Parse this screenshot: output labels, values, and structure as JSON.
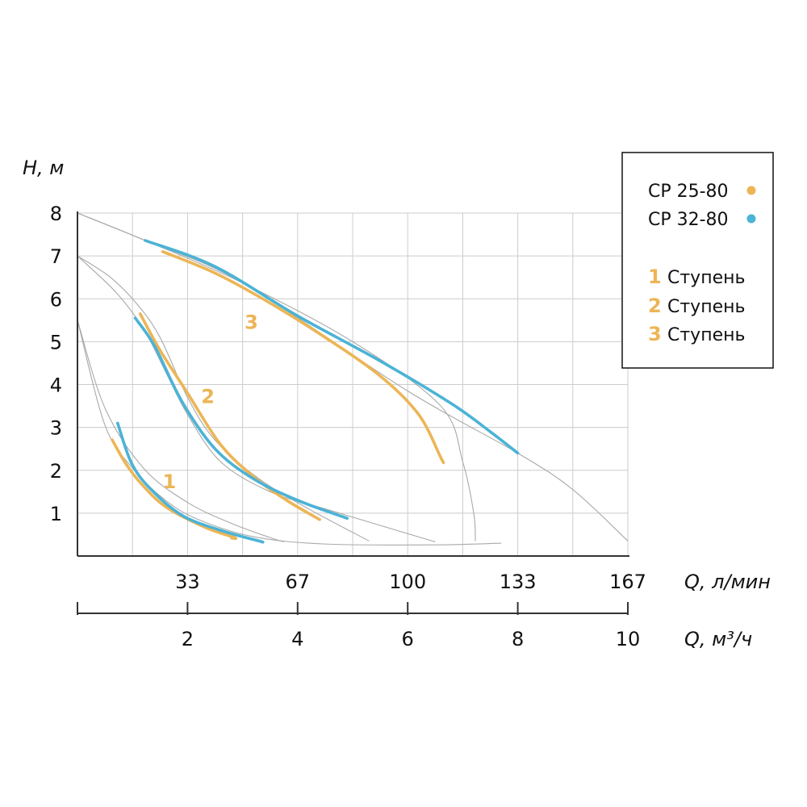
{
  "chart_data": {
    "type": "line",
    "ylabel": "H, м",
    "xlabel": "Q, л/мин",
    "xlabel_secondary": "Q, м³/ч",
    "ylim": [
      0,
      8
    ],
    "xlim": [
      0,
      10
    ],
    "y_ticks": [
      "1",
      "2",
      "3",
      "4",
      "5",
      "6",
      "7",
      "8"
    ],
    "x_ticks_primary": [
      {
        "x": 2,
        "label": "33"
      },
      {
        "x": 4,
        "label": "67"
      },
      {
        "x": 6,
        "label": "100"
      },
      {
        "x": 8,
        "label": "133"
      },
      {
        "x": 10,
        "label": "167"
      }
    ],
    "x_ticks_secondary": [
      {
        "x": 2,
        "label": "2"
      },
      {
        "x": 4,
        "label": "4"
      },
      {
        "x": 6,
        "label": "6"
      },
      {
        "x": 8,
        "label": "8"
      },
      {
        "x": 10,
        "label": "10"
      }
    ],
    "grid": true,
    "legend": {
      "placement": "top-right",
      "models": [
        {
          "label": "CP 25-80",
          "color": "#ECB556"
        },
        {
          "label": "CP 32-80",
          "color": "#4BB3D6"
        }
      ],
      "stages": [
        {
          "num": "1",
          "label": "Ступень"
        },
        {
          "num": "2",
          "label": "Ступень"
        },
        {
          "num": "3",
          "label": "Ступень"
        }
      ]
    },
    "stage_labels": [
      {
        "text": "1",
        "x": 1.67,
        "y": 1.58
      },
      {
        "text": "2",
        "x": 2.37,
        "y": 3.57
      },
      {
        "text": "3",
        "x": 3.16,
        "y": 5.3
      }
    ],
    "series": [
      {
        "model": "CP 25-80",
        "stage": "1",
        "color": "#ECB556",
        "points": [
          [
            0.63,
            2.71
          ],
          [
            0.88,
            2.15
          ],
          [
            1.15,
            1.7
          ],
          [
            1.6,
            1.15
          ],
          [
            2.3,
            0.68
          ],
          [
            2.85,
            0.43
          ],
          [
            2.8,
            0.42
          ]
        ]
      },
      {
        "model": "CP 32-80",
        "stage": "1",
        "color": "#4BB3D6",
        "points": [
          [
            0.73,
            3.1
          ],
          [
            0.97,
            2.2
          ],
          [
            1.3,
            1.6
          ],
          [
            1.9,
            0.95
          ],
          [
            2.6,
            0.6
          ],
          [
            3.3,
            0.35
          ],
          [
            3.35,
            0.33
          ]
        ]
      },
      {
        "model": "CP 25-80",
        "stage": "2",
        "color": "#ECB556",
        "points": [
          [
            1.14,
            5.65
          ],
          [
            1.5,
            4.8
          ],
          [
            2.0,
            3.8
          ],
          [
            2.6,
            2.6
          ],
          [
            3.2,
            1.85
          ],
          [
            3.8,
            1.3
          ],
          [
            4.4,
            0.85
          ]
        ]
      },
      {
        "model": "CP 32-80",
        "stage": "2",
        "color": "#4BB3D6",
        "points": [
          [
            1.05,
            5.55
          ],
          [
            1.4,
            4.9
          ],
          [
            1.9,
            3.6
          ],
          [
            2.5,
            2.5
          ],
          [
            3.2,
            1.8
          ],
          [
            4.0,
            1.3
          ],
          [
            4.9,
            0.88
          ]
        ]
      },
      {
        "model": "CP 25-80",
        "stage": "3",
        "color": "#ECB556",
        "points": [
          [
            1.55,
            7.1
          ],
          [
            2.5,
            6.6
          ],
          [
            3.5,
            5.9
          ],
          [
            4.5,
            5.1
          ],
          [
            5.5,
            4.2
          ],
          [
            6.2,
            3.3
          ],
          [
            6.6,
            2.3
          ],
          [
            6.65,
            2.18
          ]
        ]
      },
      {
        "model": "CP 32-80",
        "stage": "3",
        "color": "#4BB3D6",
        "points": [
          [
            1.23,
            7.36
          ],
          [
            2.5,
            6.75
          ],
          [
            4.0,
            5.6
          ],
          [
            5.5,
            4.55
          ],
          [
            6.8,
            3.55
          ],
          [
            7.5,
            2.9
          ],
          [
            8.0,
            2.4
          ]
        ]
      }
    ],
    "guide_curves": [
      [
        [
          0,
          5.5
        ],
        [
          0.5,
          3.45
        ],
        [
          1.2,
          2.05
        ],
        [
          2.0,
          1.25
        ],
        [
          2.8,
          0.76
        ],
        [
          3.5,
          0.43
        ],
        [
          3.75,
          0.33
        ]
      ],
      [
        [
          0,
          7.0
        ],
        [
          0.6,
          6.5
        ],
        [
          1.1,
          5.85
        ],
        [
          1.5,
          5.1
        ],
        [
          2.0,
          3.7
        ],
        [
          2.5,
          2.7
        ],
        [
          3.3,
          1.8
        ],
        [
          4.2,
          1.1
        ],
        [
          5.3,
          0.35
        ]
      ],
      [
        [
          0,
          7.0
        ],
        [
          0.7,
          6.15
        ],
        [
          1.2,
          5.3
        ],
        [
          1.6,
          4.3
        ],
        [
          2.0,
          3.3
        ],
        [
          2.6,
          2.2
        ],
        [
          3.5,
          1.5
        ],
        [
          4.5,
          1.1
        ],
        [
          6.5,
          0.33
        ]
      ],
      [
        [
          0,
          5.5
        ],
        [
          0.5,
          3.05
        ],
        [
          1.0,
          2.05
        ],
        [
          1.6,
          1.3
        ],
        [
          2.2,
          0.85
        ],
        [
          3.2,
          0.45
        ],
        [
          4.5,
          0.28
        ],
        [
          6.5,
          0.26
        ],
        [
          7.7,
          0.3
        ]
      ],
      [
        [
          0,
          8.0
        ],
        [
          1.23,
          7.36
        ],
        [
          3.0,
          6.37
        ],
        [
          5.0,
          5.0
        ],
        [
          6.6,
          3.5
        ],
        [
          7.0,
          2.2
        ],
        [
          7.2,
          1.0
        ],
        [
          7.23,
          0.35
        ]
      ],
      [
        [
          0,
          8.0
        ],
        [
          1.23,
          7.36
        ],
        [
          3.0,
          6.37
        ],
        [
          6.0,
          3.85
        ],
        [
          8.0,
          2.4
        ],
        [
          9.0,
          1.55
        ],
        [
          10.0,
          0.35
        ]
      ]
    ]
  }
}
